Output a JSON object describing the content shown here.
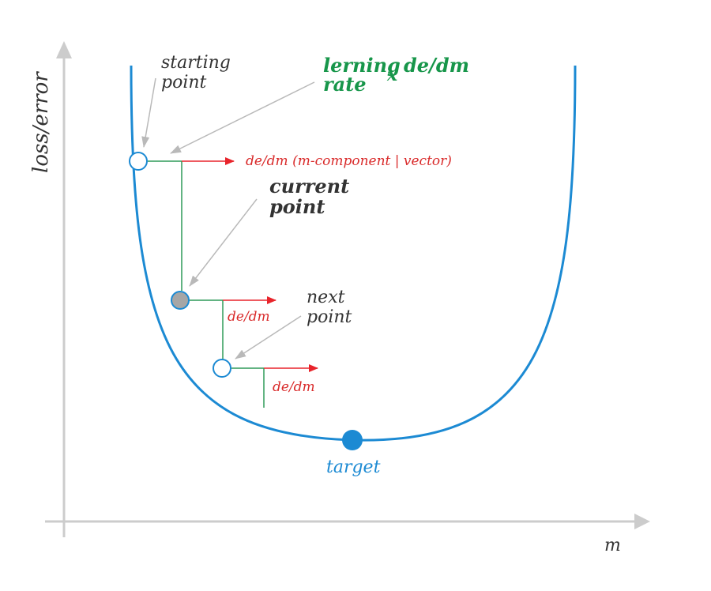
{
  "axes": {
    "y_label": "loss/error",
    "x_label": "m"
  },
  "labels": {
    "starting_point": [
      "starting",
      "point"
    ],
    "learning_rate_line1_word": "lerning",
    "learning_rate_subscript": "x",
    "learning_rate_formula": "de/dm",
    "learning_rate_line2": "rate",
    "current_point": [
      "current",
      "point"
    ],
    "next_point": [
      "next",
      "point"
    ],
    "target": "target",
    "gradient_vector": "de/dm (m-component | vector)",
    "gradient_2": "de/dm",
    "gradient_3": "de/dm"
  },
  "colors": {
    "axis": "#cccccc",
    "curve": "#1c8ad3",
    "gradient_arrow": "#e8242b",
    "step_lines": "#2f9a58",
    "callout_arrow": "#b9b9b9",
    "learning_rate_text": "#17964a",
    "target_text": "#1c8ad3",
    "gradient_text": "#d92a2a",
    "dark_text": "#333333",
    "current_point_fill": "#a6a6a6"
  }
}
